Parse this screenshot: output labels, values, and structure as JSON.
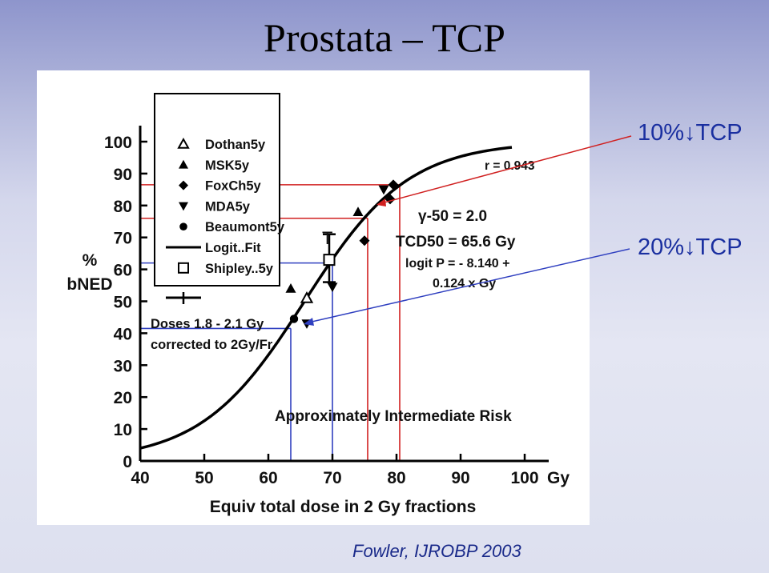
{
  "slide": {
    "title": "Prostata – TCP",
    "citation": "Fowler, IJROBP 2003"
  },
  "annotations": [
    {
      "value": "10%",
      "arrow": "↓",
      "label": "TCP",
      "color": "#1a2fa0"
    },
    {
      "value": "20%",
      "arrow": "↓",
      "label": "TCP",
      "color": "#1a2fa0"
    }
  ],
  "chart_data": {
    "type": "scatter",
    "ylabel_lines": [
      "%",
      "bNED"
    ],
    "xlabel": "Equiv total dose in 2 Gy fractions",
    "x_unit": "Gy",
    "xlim": [
      40,
      100
    ],
    "ylim": [
      0,
      100
    ],
    "x_ticks": [
      40,
      50,
      60,
      70,
      80,
      90,
      100
    ],
    "y_ticks": [
      0,
      10,
      20,
      30,
      40,
      50,
      60,
      70,
      80,
      90,
      100
    ],
    "legend": {
      "placement": "top-left",
      "entries": [
        {
          "label": "Dothan5y",
          "marker": "triangle-open"
        },
        {
          "label": "MSK5y",
          "marker": "triangle-filled"
        },
        {
          "label": "FoxCh5y",
          "marker": "diamond-filled"
        },
        {
          "label": "MDA5y",
          "marker": "triangle-down-filled"
        },
        {
          "label": "Beaumont5y",
          "marker": "circle-filled"
        },
        {
          "label": "Logit..Fit",
          "marker": "line"
        },
        {
          "label": "Shipley..5y",
          "marker": "square-open"
        }
      ]
    },
    "notes": [
      "Doses 1.8 - 2.1 Gy",
      "corrected to 2Gy/Fr"
    ],
    "fit_text": {
      "r": "r = 0.943",
      "gamma": "γ-50 = 2.0",
      "tcd50": "TCD50 = 65.6 Gy",
      "logit1": "logit P = - 8.140 +",
      "logit2": "0.124 x Gy"
    },
    "risk_label": "Approximately Intermediate Risk",
    "fit": {
      "a": -8.14,
      "b": 0.124,
      "x_range": [
        40,
        98
      ]
    },
    "series": [
      {
        "name": "Dothan5y",
        "marker": "triangle-open",
        "points": [
          [
            66,
            51
          ]
        ]
      },
      {
        "name": "MSK5y",
        "marker": "triangle-filled",
        "points": [
          [
            63.5,
            54
          ],
          [
            74,
            78
          ]
        ]
      },
      {
        "name": "FoxCh5y",
        "marker": "diamond-filled",
        "points": [
          [
            75,
            69
          ],
          [
            79,
            82
          ],
          [
            79.5,
            86.5
          ]
        ]
      },
      {
        "name": "MDA5y",
        "marker": "triangle-down-filled",
        "points": [
          [
            66,
            43
          ],
          [
            70,
            54.5
          ],
          [
            78,
            85
          ]
        ]
      },
      {
        "name": "Beaumont5y",
        "marker": "circle-filled",
        "points": [
          [
            64,
            44.5
          ]
        ]
      },
      {
        "name": "Shipley..5y",
        "marker": "square-open",
        "points": [
          [
            69.5,
            63
          ]
        ],
        "error_bar": [
          56,
          71
        ]
      }
    ],
    "reference_lines": [
      {
        "color": "#3040c0",
        "x": 63.5,
        "y": 41.5
      },
      {
        "color": "#3040c0",
        "x": 70,
        "y": 62
      },
      {
        "color": "#d02020",
        "x": 75.5,
        "y": 76
      },
      {
        "color": "#d02020",
        "x": 80.5,
        "y": 86.5
      }
    ]
  }
}
